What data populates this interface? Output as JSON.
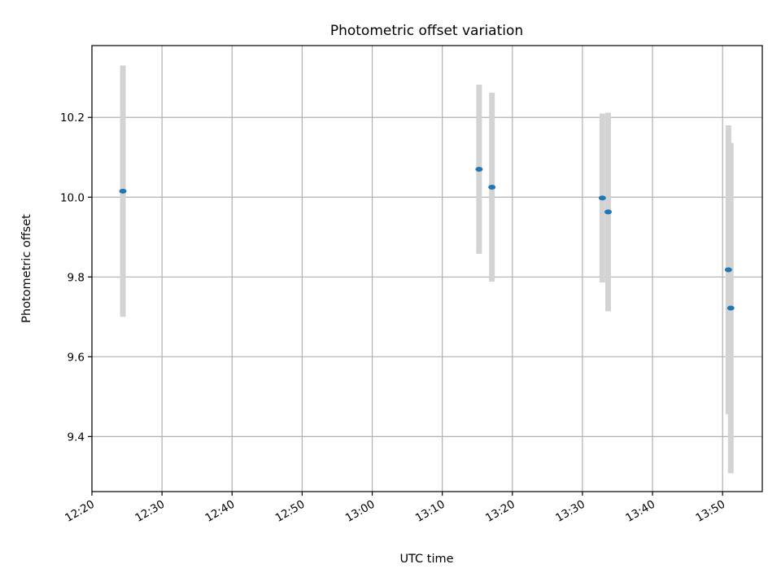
{
  "chart_data": {
    "type": "scatter",
    "title": "Photometric offset variation",
    "xlabel": "UTC time",
    "ylabel": "Photometric offset",
    "grid": true,
    "x_range": [
      "12:20",
      "13:55:40"
    ],
    "ylim": [
      9.262,
      10.38
    ],
    "x_ticks": [
      "12:20",
      "12:30",
      "12:40",
      "12:50",
      "13:00",
      "13:10",
      "13:20",
      "13:30",
      "13:40",
      "13:50"
    ],
    "y_ticks": [
      9.4,
      9.6,
      9.8,
      10.0,
      10.2
    ],
    "y_tick_labels": [
      "9.4",
      "9.6",
      "9.8",
      "10.0",
      "10.2"
    ],
    "marker_color": "#1f77b4",
    "errorbar_color": "#d3d3d3",
    "points": [
      {
        "x": "12:24:25",
        "y": 10.015,
        "err": 0.315
      },
      {
        "x": "13:15:15",
        "y": 10.07,
        "err": 0.212
      },
      {
        "x": "13:17:05",
        "y": 10.025,
        "err": 0.237
      },
      {
        "x": "13:32:50",
        "y": 9.998,
        "err": 0.212
      },
      {
        "x": "13:33:40",
        "y": 9.963,
        "err": 0.249
      },
      {
        "x": "13:50:50",
        "y": 9.818,
        "err": 0.362
      },
      {
        "x": "13:51:10",
        "y": 9.722,
        "err": 0.414
      }
    ]
  }
}
